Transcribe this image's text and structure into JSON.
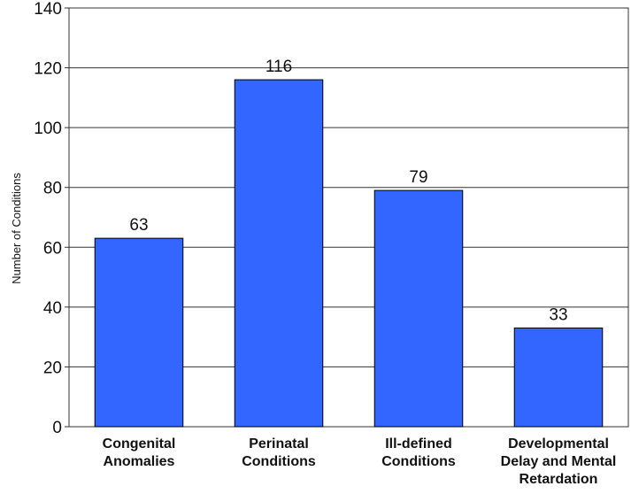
{
  "chart_data": {
    "type": "bar",
    "categories": [
      [
        "Congenital",
        "Anomalies"
      ],
      [
        "Perinatal",
        "Conditions"
      ],
      [
        "Ill-defined",
        "Conditions"
      ],
      [
        "Developmental",
        "Delay and Mental",
        "Retardation"
      ]
    ],
    "values": [
      63,
      116,
      79,
      33
    ],
    "data_labels": [
      "63",
      "116",
      "79",
      "33"
    ],
    "yticks": [
      "0",
      "20",
      "40",
      "60",
      "80",
      "100",
      "120",
      "140"
    ],
    "ylabel": "Number of Conditions",
    "ylim": [
      0,
      140
    ],
    "grid": true,
    "bar_color": "#3366ff"
  }
}
